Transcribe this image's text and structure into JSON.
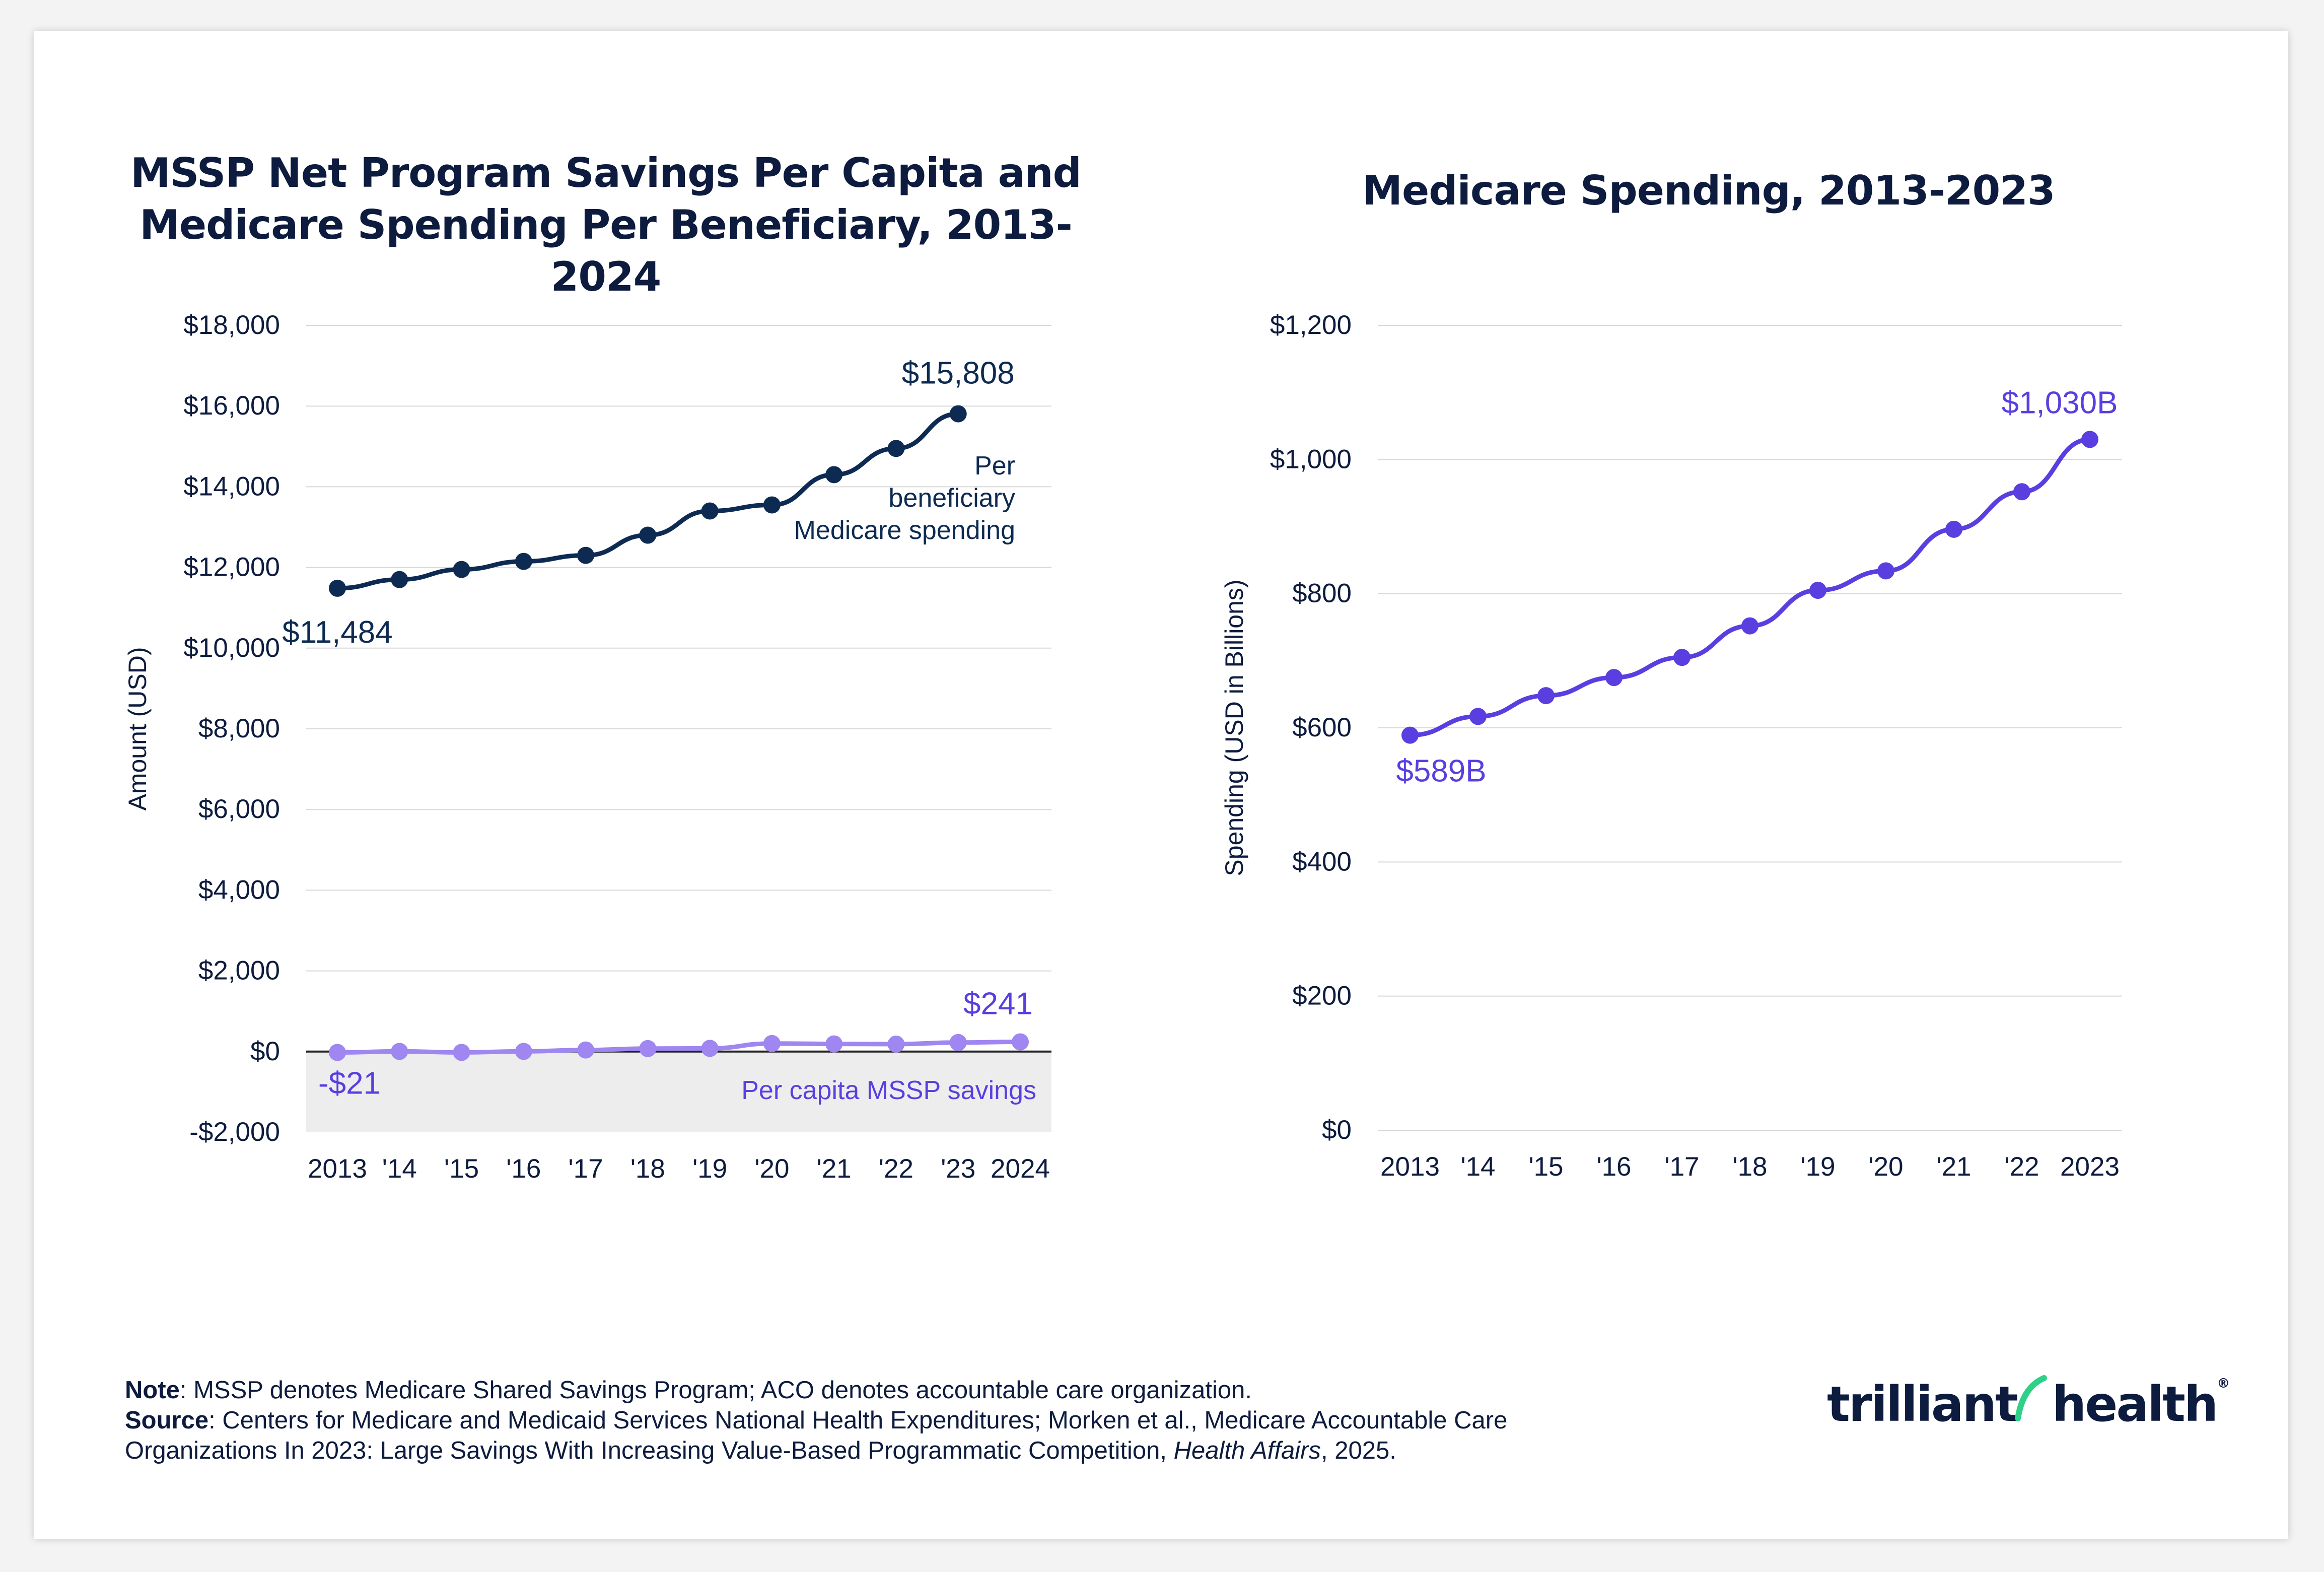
{
  "charts": {
    "left": {
      "title_line1": "MSSP Net Program Savings Per Capita and",
      "title_line2": "Medicare Spending Per Beneficiary, 2013-2024"
    },
    "right": {
      "title": "Medicare Spending, 2013-2023"
    }
  },
  "chart_data": [
    {
      "type": "line",
      "title": "MSSP Net Program Savings Per Capita and Medicare Spending Per Beneficiary, 2013-2024",
      "ylabel": "Amount (USD)",
      "xlabel": "",
      "ylim": [
        -2000,
        18000
      ],
      "yticks": [
        18000,
        16000,
        14000,
        12000,
        10000,
        8000,
        6000,
        4000,
        2000,
        0,
        -2000
      ],
      "ytick_labels": [
        "$18,000",
        "$16,000",
        "$14,000",
        "$12,000",
        "$10,000",
        "$8,000",
        "$6,000",
        "$4,000",
        "$2,000",
        "$0",
        "-$2,000"
      ],
      "x": [
        2013,
        2014,
        2015,
        2016,
        2017,
        2018,
        2019,
        2020,
        2021,
        2022,
        2023,
        2024
      ],
      "xtick_labels": [
        "2013",
        "'14",
        "'15",
        "'16",
        "'17",
        "'18",
        "'19",
        "'20",
        "'21",
        "'22",
        "'23",
        "2024"
      ],
      "grid": true,
      "shaded_negative_region": true,
      "series": [
        {
          "name": "Per beneficiary Medicare spending",
          "label_lines": [
            "Per",
            "beneficiary",
            "Medicare spending"
          ],
          "color": "#0d2b52",
          "x": [
            2013,
            2014,
            2015,
            2016,
            2017,
            2018,
            2019,
            2020,
            2021,
            2022,
            2023
          ],
          "values": [
            11484,
            11700,
            11950,
            12150,
            12300,
            12800,
            13400,
            13550,
            14300,
            14950,
            15808
          ],
          "annotations": [
            {
              "text": "$11,484",
              "at": 2013
            },
            {
              "text": "$15,808",
              "at": 2023
            }
          ]
        },
        {
          "name": "Per capita MSSP savings",
          "label_lines": [
            "Per capita MSSP savings"
          ],
          "color": "#9f86f0",
          "label_color": "#5a3ee0",
          "x": [
            2013,
            2014,
            2015,
            2016,
            2017,
            2018,
            2019,
            2020,
            2021,
            2022,
            2023,
            2024
          ],
          "values": [
            -21,
            5,
            -20,
            5,
            40,
            75,
            80,
            200,
            190,
            185,
            225,
            241
          ],
          "annotations": [
            {
              "text": "-$21",
              "at": 2013
            },
            {
              "text": "$241",
              "at": 2024
            }
          ]
        }
      ]
    },
    {
      "type": "line",
      "title": "Medicare Spending, 2013-2023",
      "ylabel": "Spending (USD in Billions)",
      "xlabel": "",
      "ylim": [
        0,
        1200
      ],
      "yticks": [
        1200,
        1000,
        800,
        600,
        400,
        200,
        0
      ],
      "ytick_labels": [
        "$1,200",
        "$1,000",
        "$800",
        "$600",
        "$400",
        "$200",
        "$0"
      ],
      "x": [
        2013,
        2014,
        2015,
        2016,
        2017,
        2018,
        2019,
        2020,
        2021,
        2022,
        2023
      ],
      "xtick_labels": [
        "2013",
        "'14",
        "'15",
        "'16",
        "'17",
        "'18",
        "'19",
        "'20",
        "'21",
        "'22",
        "2023"
      ],
      "grid": true,
      "series": [
        {
          "color": "#5a3ee0",
          "x": [
            2013,
            2014,
            2015,
            2016,
            2017,
            2018,
            2019,
            2020,
            2021,
            2022,
            2023
          ],
          "values": [
            589,
            617,
            648,
            675,
            705,
            752,
            805,
            834,
            896,
            952,
            1030
          ],
          "annotations": [
            {
              "text": "$589B",
              "at": 2013
            },
            {
              "text": "$1,030B",
              "at": 2023
            }
          ]
        }
      ]
    }
  ],
  "footnote": {
    "note_label": "Note",
    "note_text": ": MSSP denotes Medicare Shared Savings Program; ACO denotes accountable care organization.",
    "source_label": "Source",
    "source_text": ": Centers for Medicare and Medicaid Services National Health Expenditures; Morken et al., Medicare Accountable Care Organizations In 2023: Large Savings With Increasing Value-Based Programmatic Competition, ",
    "source_italic": "Health Affairs",
    "source_end": ", 2025."
  },
  "logo": {
    "text_part1": "trilliant",
    "text_part2": "health",
    "registered": "®",
    "color": "#0d1b3e",
    "accent": "#2fd087"
  }
}
